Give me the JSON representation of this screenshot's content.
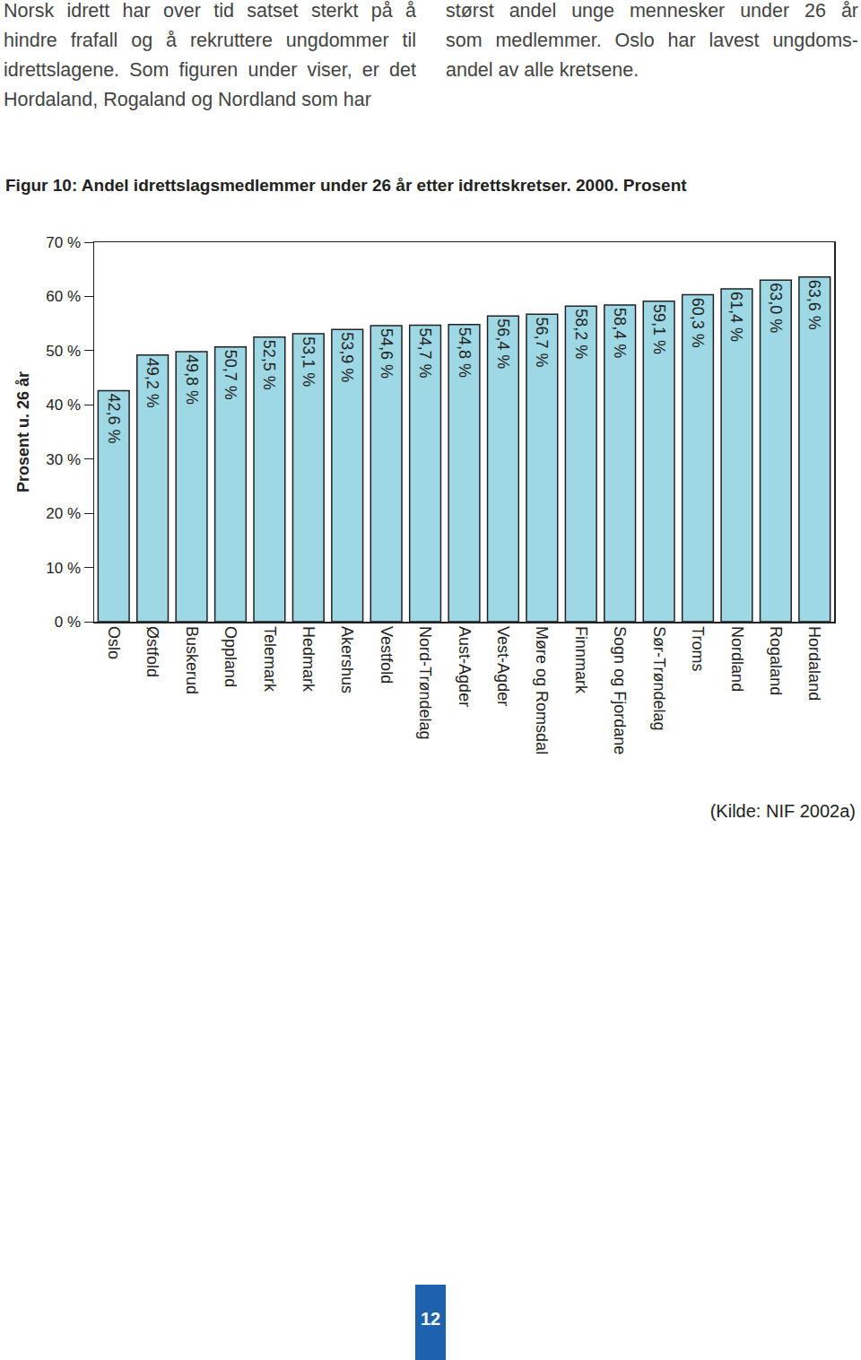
{
  "document": {
    "columns": [
      [
        "Norsk idrett har over tid satset sterkt på å",
        "hindre frafall og å rekruttere ungdommer til",
        "idrettslagene. Som figuren under viser, er det",
        "Hordaland, Rogaland og Nordland som har"
      ],
      [
        "størst andel unge mennesker under 26 år",
        "som medlemmer. Oslo har lavest ungdoms-",
        "andel av alle kretsene."
      ]
    ],
    "source": "(Kilde: NIF 2002a)",
    "page_number": "12"
  },
  "chart_data": {
    "type": "bar",
    "title": "Figur 10: Andel idrettslagsmedlemmer under 26 år etter idrettskretser. 2000. Prosent",
    "y_label": "Prosent u. 26 år",
    "categories": [
      "Oslo",
      "Østfold",
      "Buskerud",
      "Oppland",
      "Telemark",
      "Hedmark",
      "Akershus",
      "Vestfold",
      "Nord-Trøndelag",
      "Aust-Agder",
      "Vest-Agder",
      "Møre og Romsdal",
      "Finnmark",
      "Sogn og Fjordane",
      "Sør-Trøndelag",
      "Troms",
      "Nordland",
      "Rogaland",
      "Hordaland"
    ],
    "values": [
      42.6,
      49.2,
      49.8,
      50.7,
      52.5,
      53.1,
      53.9,
      54.6,
      54.7,
      54.8,
      56.4,
      56.7,
      58.2,
      58.4,
      59.1,
      60.3,
      61.4,
      63.0,
      63.6
    ],
    "value_labels": [
      "42,6 %",
      "49,2 %",
      "49,8 %",
      "50,7 %",
      "52,5 %",
      "53,1 %",
      "53,9 %",
      "54,6 %",
      "54,7 %",
      "54,8 %",
      "56,4 %",
      "56,7 %",
      "58,2 %",
      "58,4 %",
      "59,1 %",
      "60,3 %",
      "61,4 %",
      "63,0 %",
      "63,6 %"
    ],
    "data_labels": true,
    "color": "#9fd8e5",
    "ylim": [
      0,
      70
    ],
    "yticks": [
      {
        "value": 0,
        "label": "0 %"
      },
      {
        "value": 10,
        "label": "10 %"
      },
      {
        "value": 20,
        "label": "20 %"
      },
      {
        "value": 30,
        "label": "30 %"
      },
      {
        "value": 40,
        "label": "40 %"
      },
      {
        "value": 50,
        "label": "50 %"
      },
      {
        "value": 60,
        "label": "60 %"
      },
      {
        "value": 70,
        "label": "70 %"
      }
    ],
    "grid": false
  }
}
